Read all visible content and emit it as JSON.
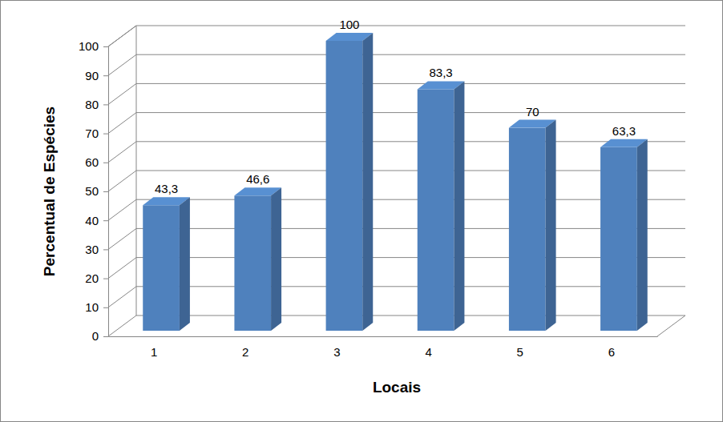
{
  "chart_data": {
    "type": "bar",
    "x_label": "Locais",
    "y_label": "Percentual de Espécies",
    "categories": [
      "1",
      "2",
      "3",
      "4",
      "5",
      "6"
    ],
    "values": [
      43.3,
      46.6,
      100,
      83.3,
      70,
      63.3
    ],
    "value_labels": [
      "43,3",
      "46,6",
      "100",
      "83,3",
      "70",
      "63,3"
    ],
    "data_labels": true,
    "color": "#4f81bd",
    "ylim": [
      0,
      100
    ],
    "yticks": [
      0,
      10,
      20,
      30,
      40,
      50,
      60,
      70,
      80,
      90,
      100
    ],
    "grid": true
  }
}
